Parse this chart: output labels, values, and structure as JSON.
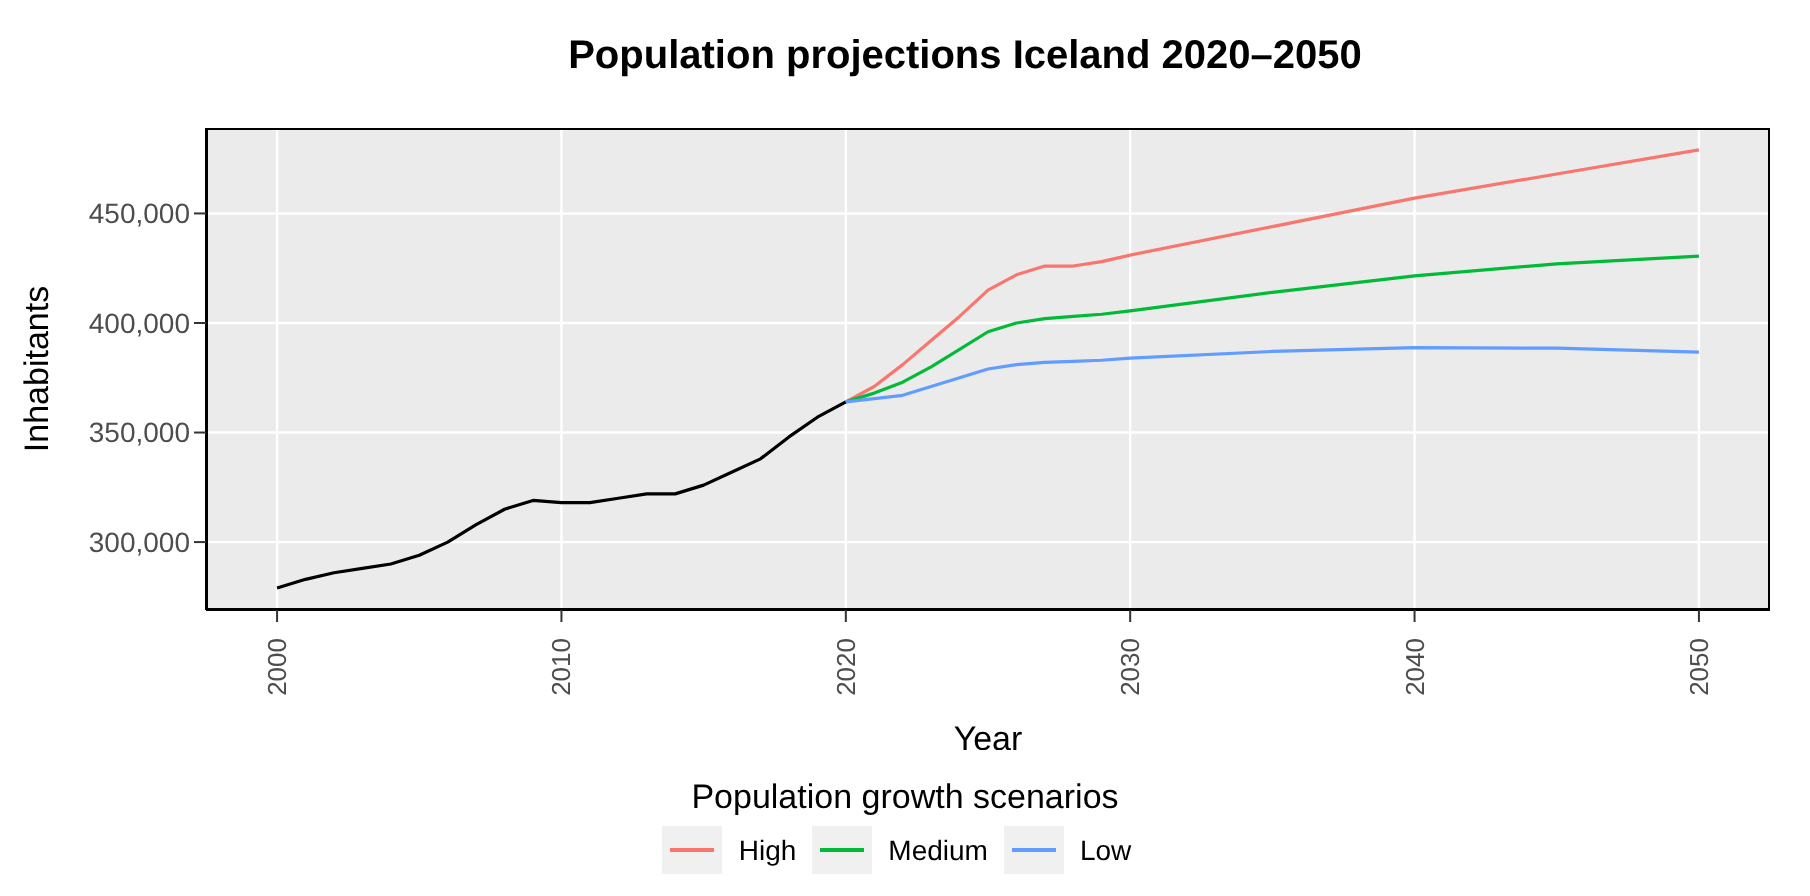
{
  "chart_data": {
    "type": "line",
    "title": "Population projections Iceland 2020–2050",
    "xlabel": "Year",
    "ylabel": "Inhabitants",
    "legend_title": "Population growth scenarios",
    "xlim": [
      1997.5,
      2052.5
    ],
    "xticks": [
      2000,
      2010,
      2020,
      2030,
      2040,
      2050
    ],
    "ylim": [
      269000,
      489000
    ],
    "yticks": [
      {
        "value": 300000,
        "label": "300,000"
      },
      {
        "value": 350000,
        "label": "350,000"
      },
      {
        "value": 400000,
        "label": "400,000"
      },
      {
        "value": 450000,
        "label": "450,000"
      }
    ],
    "grid": true,
    "legend": "bottom",
    "marker": "none",
    "line_style": "solid",
    "series": [
      {
        "color": "#000000",
        "x": [
          2000,
          2001,
          2002,
          2003,
          2004,
          2005,
          2006,
          2007,
          2008,
          2009,
          2010,
          2011,
          2012,
          2013,
          2014,
          2015,
          2016,
          2017,
          2018,
          2019,
          2020
        ],
        "values": [
          279000,
          283000,
          286000,
          288000,
          290000,
          294000,
          300000,
          308000,
          315000,
          319000,
          318000,
          318000,
          320000,
          322000,
          322000,
          326000,
          332000,
          338000,
          348000,
          357000,
          364000
        ]
      },
      {
        "name": "High",
        "color": "#f8766d",
        "x": [
          2020,
          2021,
          2022,
          2023,
          2024,
          2025,
          2026,
          2027,
          2028,
          2029,
          2030,
          2035,
          2040,
          2045,
          2050
        ],
        "values": [
          364000,
          371000,
          381000,
          392000,
          403000,
          415000,
          422000,
          426000,
          426000,
          428000,
          431000,
          444000,
          457000,
          468000,
          479000
        ]
      },
      {
        "name": "Medium",
        "color": "#00ba38",
        "x": [
          2020,
          2021,
          2022,
          2023,
          2024,
          2025,
          2026,
          2027,
          2028,
          2029,
          2030,
          2035,
          2040,
          2045,
          2050
        ],
        "values": [
          364000,
          368000,
          373000,
          380000,
          388000,
          396000,
          400000,
          402000,
          403000,
          404000,
          405500,
          414000,
          421500,
          427000,
          430500
        ]
      },
      {
        "name": "Low",
        "color": "#619cff",
        "x": [
          2020,
          2021,
          2022,
          2023,
          2024,
          2025,
          2026,
          2027,
          2028,
          2029,
          2030,
          2035,
          2040,
          2045,
          2050
        ],
        "values": [
          364000,
          365500,
          367000,
          371000,
          375000,
          379000,
          381000,
          382000,
          382500,
          383000,
          384000,
          387000,
          388800,
          388500,
          386700
        ]
      }
    ]
  }
}
